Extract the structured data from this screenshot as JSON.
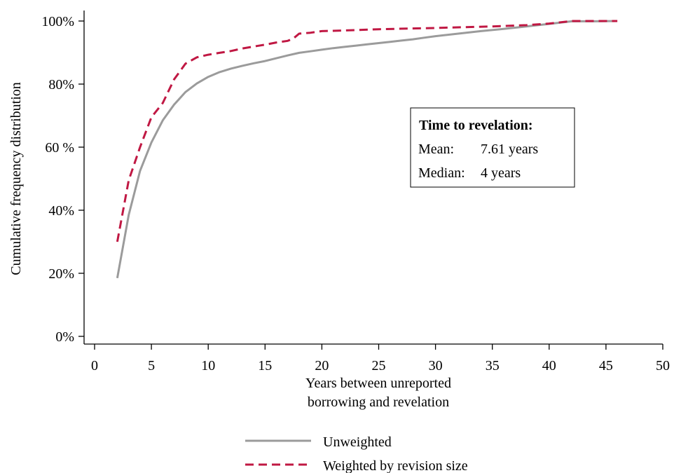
{
  "chart_data": {
    "type": "line",
    "xlabel": [
      "Years between unreported",
      "borrowing and revelation"
    ],
    "ylabel": "Cumulative frequency distribution",
    "xlim": [
      0,
      50
    ],
    "ylim": [
      0,
      100
    ],
    "x_ticks": [
      0,
      5,
      10,
      15,
      20,
      25,
      30,
      35,
      40,
      45,
      50
    ],
    "x_tick_labels": [
      "0",
      "5",
      "10",
      "15",
      "20",
      "25",
      "30",
      "35",
      "40",
      "45",
      "50"
    ],
    "y_ticks": [
      0,
      20,
      40,
      60,
      80,
      100
    ],
    "y_tick_labels": [
      "0%",
      "20%",
      "40%",
      "60 %",
      "80%",
      "100%"
    ],
    "grid": false,
    "legend_position": "bottom",
    "series": [
      {
        "name": "Unweighted",
        "color": "#9b9b9b",
        "style": "solid",
        "x": [
          2,
          3,
          4,
          5,
          6,
          7,
          8,
          9,
          10,
          11,
          12,
          13,
          14,
          15,
          16,
          17,
          18,
          19,
          20,
          21,
          22,
          23,
          24,
          25,
          26,
          27,
          28,
          29,
          30,
          32,
          34,
          36,
          38,
          40,
          42,
          44,
          46
        ],
        "values": [
          18.5,
          38.5,
          52.5,
          61.5,
          68.5,
          73.5,
          77.5,
          80.2,
          82.3,
          83.8,
          84.9,
          85.8,
          86.6,
          87.3,
          88.2,
          89.1,
          89.9,
          90.4,
          90.9,
          91.4,
          91.8,
          92.2,
          92.6,
          93.0,
          93.4,
          93.8,
          94.2,
          94.7,
          95.2,
          96.0,
          96.8,
          97.5,
          98.3,
          99.1,
          99.9,
          99.9,
          100
        ]
      },
      {
        "name": "Weighted by revision size",
        "color": "#c01843",
        "style": "dashed",
        "x": [
          2,
          3,
          4,
          5,
          6,
          7,
          8,
          9,
          10,
          11,
          12,
          13,
          14,
          15,
          16,
          17,
          17.5,
          18,
          19,
          20,
          22,
          25,
          30,
          35,
          38,
          40,
          42,
          44,
          46
        ],
        "values": [
          30,
          49.5,
          60,
          69.5,
          74,
          81.5,
          86.5,
          88.5,
          89.3,
          89.9,
          90.5,
          91.3,
          91.9,
          92.5,
          93.2,
          93.7,
          94.5,
          96.0,
          96.3,
          96.8,
          97.0,
          97.4,
          97.8,
          98.3,
          98.7,
          99.2,
          100,
          100,
          100
        ]
      }
    ],
    "annotation": {
      "title": "Time to revelation:",
      "mean_label": "Mean:",
      "mean_value": "7.61 years",
      "median_label": "Median:",
      "median_value": "4 years"
    }
  }
}
